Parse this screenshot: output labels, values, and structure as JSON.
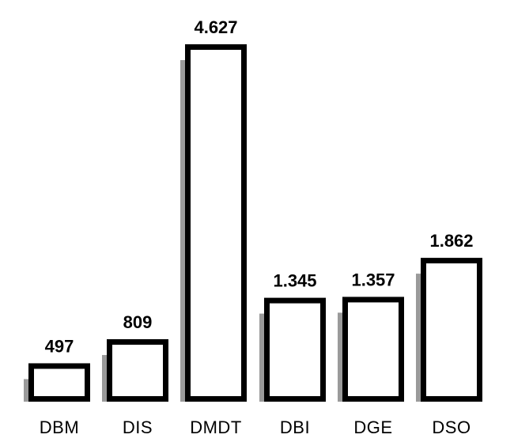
{
  "chart_data": {
    "type": "bar",
    "categories": [
      "DBM",
      "DIS",
      "DMDT",
      "DBI",
      "DGE",
      "DSO"
    ],
    "values": [
      497,
      809,
      4627,
      1345,
      1357,
      1862
    ],
    "data_labels": [
      "497",
      "809",
      "4.627",
      "1.345",
      "1.357",
      "1.862"
    ],
    "title": "",
    "xlabel": "",
    "ylabel": "",
    "ylim": [
      0,
      4627
    ],
    "grid": false,
    "legend": "none",
    "colors": {
      "bar_fill": "#ffffff",
      "bar_outline": "#000000",
      "shadow": "#9a9a9a"
    }
  }
}
